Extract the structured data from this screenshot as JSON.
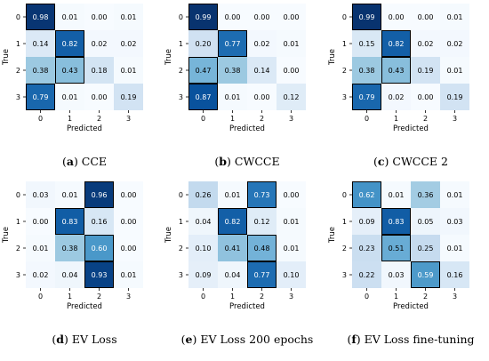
{
  "chart_data": [
    {
      "type": "heatmap",
      "label": "(a)",
      "caption": "CCE",
      "xlabel": "Predicted",
      "ylabel": "True",
      "x_categories": [
        "0",
        "1",
        "2",
        "3"
      ],
      "y_categories": [
        "0",
        "1",
        "2",
        "3"
      ],
      "values": [
        [
          0.98,
          0.01,
          0.0,
          0.01
        ],
        [
          0.14,
          0.82,
          0.02,
          0.02
        ],
        [
          0.38,
          0.43,
          0.18,
          0.01
        ],
        [
          0.79,
          0.01,
          0.0,
          0.19
        ]
      ]
    },
    {
      "type": "heatmap",
      "label": "(b)",
      "caption": "CWCCE",
      "xlabel": "Predicted",
      "ylabel": "True",
      "x_categories": [
        "0",
        "1",
        "2",
        "3"
      ],
      "y_categories": [
        "0",
        "1",
        "2",
        "3"
      ],
      "values": [
        [
          0.99,
          0.0,
          0.0,
          0.0
        ],
        [
          0.2,
          0.77,
          0.02,
          0.01
        ],
        [
          0.47,
          0.38,
          0.14,
          0.0
        ],
        [
          0.87,
          0.01,
          0.0,
          0.12
        ]
      ]
    },
    {
      "type": "heatmap",
      "label": "(c)",
      "caption": "CWCCE 2",
      "xlabel": "Predicted",
      "ylabel": "True",
      "x_categories": [
        "0",
        "1",
        "2",
        "3"
      ],
      "y_categories": [
        "0",
        "1",
        "2",
        "3"
      ],
      "values": [
        [
          0.99,
          0.0,
          0.0,
          0.01
        ],
        [
          0.15,
          0.82,
          0.02,
          0.02
        ],
        [
          0.38,
          0.43,
          0.19,
          0.01
        ],
        [
          0.79,
          0.02,
          0.0,
          0.19
        ]
      ]
    },
    {
      "type": "heatmap",
      "label": "(d)",
      "caption": "EV Loss",
      "xlabel": "Predicted",
      "ylabel": "True",
      "x_categories": [
        "0",
        "1",
        "2",
        "3"
      ],
      "y_categories": [
        "0",
        "1",
        "2",
        "3"
      ],
      "values": [
        [
          0.03,
          0.01,
          0.96,
          0.0
        ],
        [
          0.0,
          0.83,
          0.16,
          0.0
        ],
        [
          0.01,
          0.38,
          0.6,
          0.0
        ],
        [
          0.02,
          0.04,
          0.93,
          0.01
        ]
      ]
    },
    {
      "type": "heatmap",
      "label": "(e)",
      "caption": "EV Loss 200 epochs",
      "xlabel": "Predicted",
      "ylabel": "True",
      "x_categories": [
        "0",
        "1",
        "2",
        "3"
      ],
      "y_categories": [
        "0",
        "1",
        "2",
        "3"
      ],
      "values": [
        [
          0.26,
          0.01,
          0.73,
          0.0
        ],
        [
          0.04,
          0.82,
          0.12,
          0.01
        ],
        [
          0.1,
          0.41,
          0.48,
          0.01
        ],
        [
          0.09,
          0.04,
          0.77,
          0.1
        ]
      ]
    },
    {
      "type": "heatmap",
      "label": "(f)",
      "caption": "EV Loss fine-tuning",
      "xlabel": "Predicted",
      "ylabel": "True",
      "x_categories": [
        "0",
        "1",
        "2",
        "3"
      ],
      "y_categories": [
        "0",
        "1",
        "2",
        "3"
      ],
      "values": [
        [
          0.62,
          0.01,
          0.36,
          0.01
        ],
        [
          0.09,
          0.83,
          0.05,
          0.03
        ],
        [
          0.23,
          0.51,
          0.25,
          0.01
        ],
        [
          0.22,
          0.03,
          0.59,
          0.16
        ]
      ]
    }
  ],
  "colormap": [
    "#f7fbff",
    "#deebf7",
    "#c6dbef",
    "#9ecae1",
    "#6baed6",
    "#4292c6",
    "#2171b5",
    "#08519c",
    "#08306b"
  ],
  "highlight_border_color": "#000000"
}
